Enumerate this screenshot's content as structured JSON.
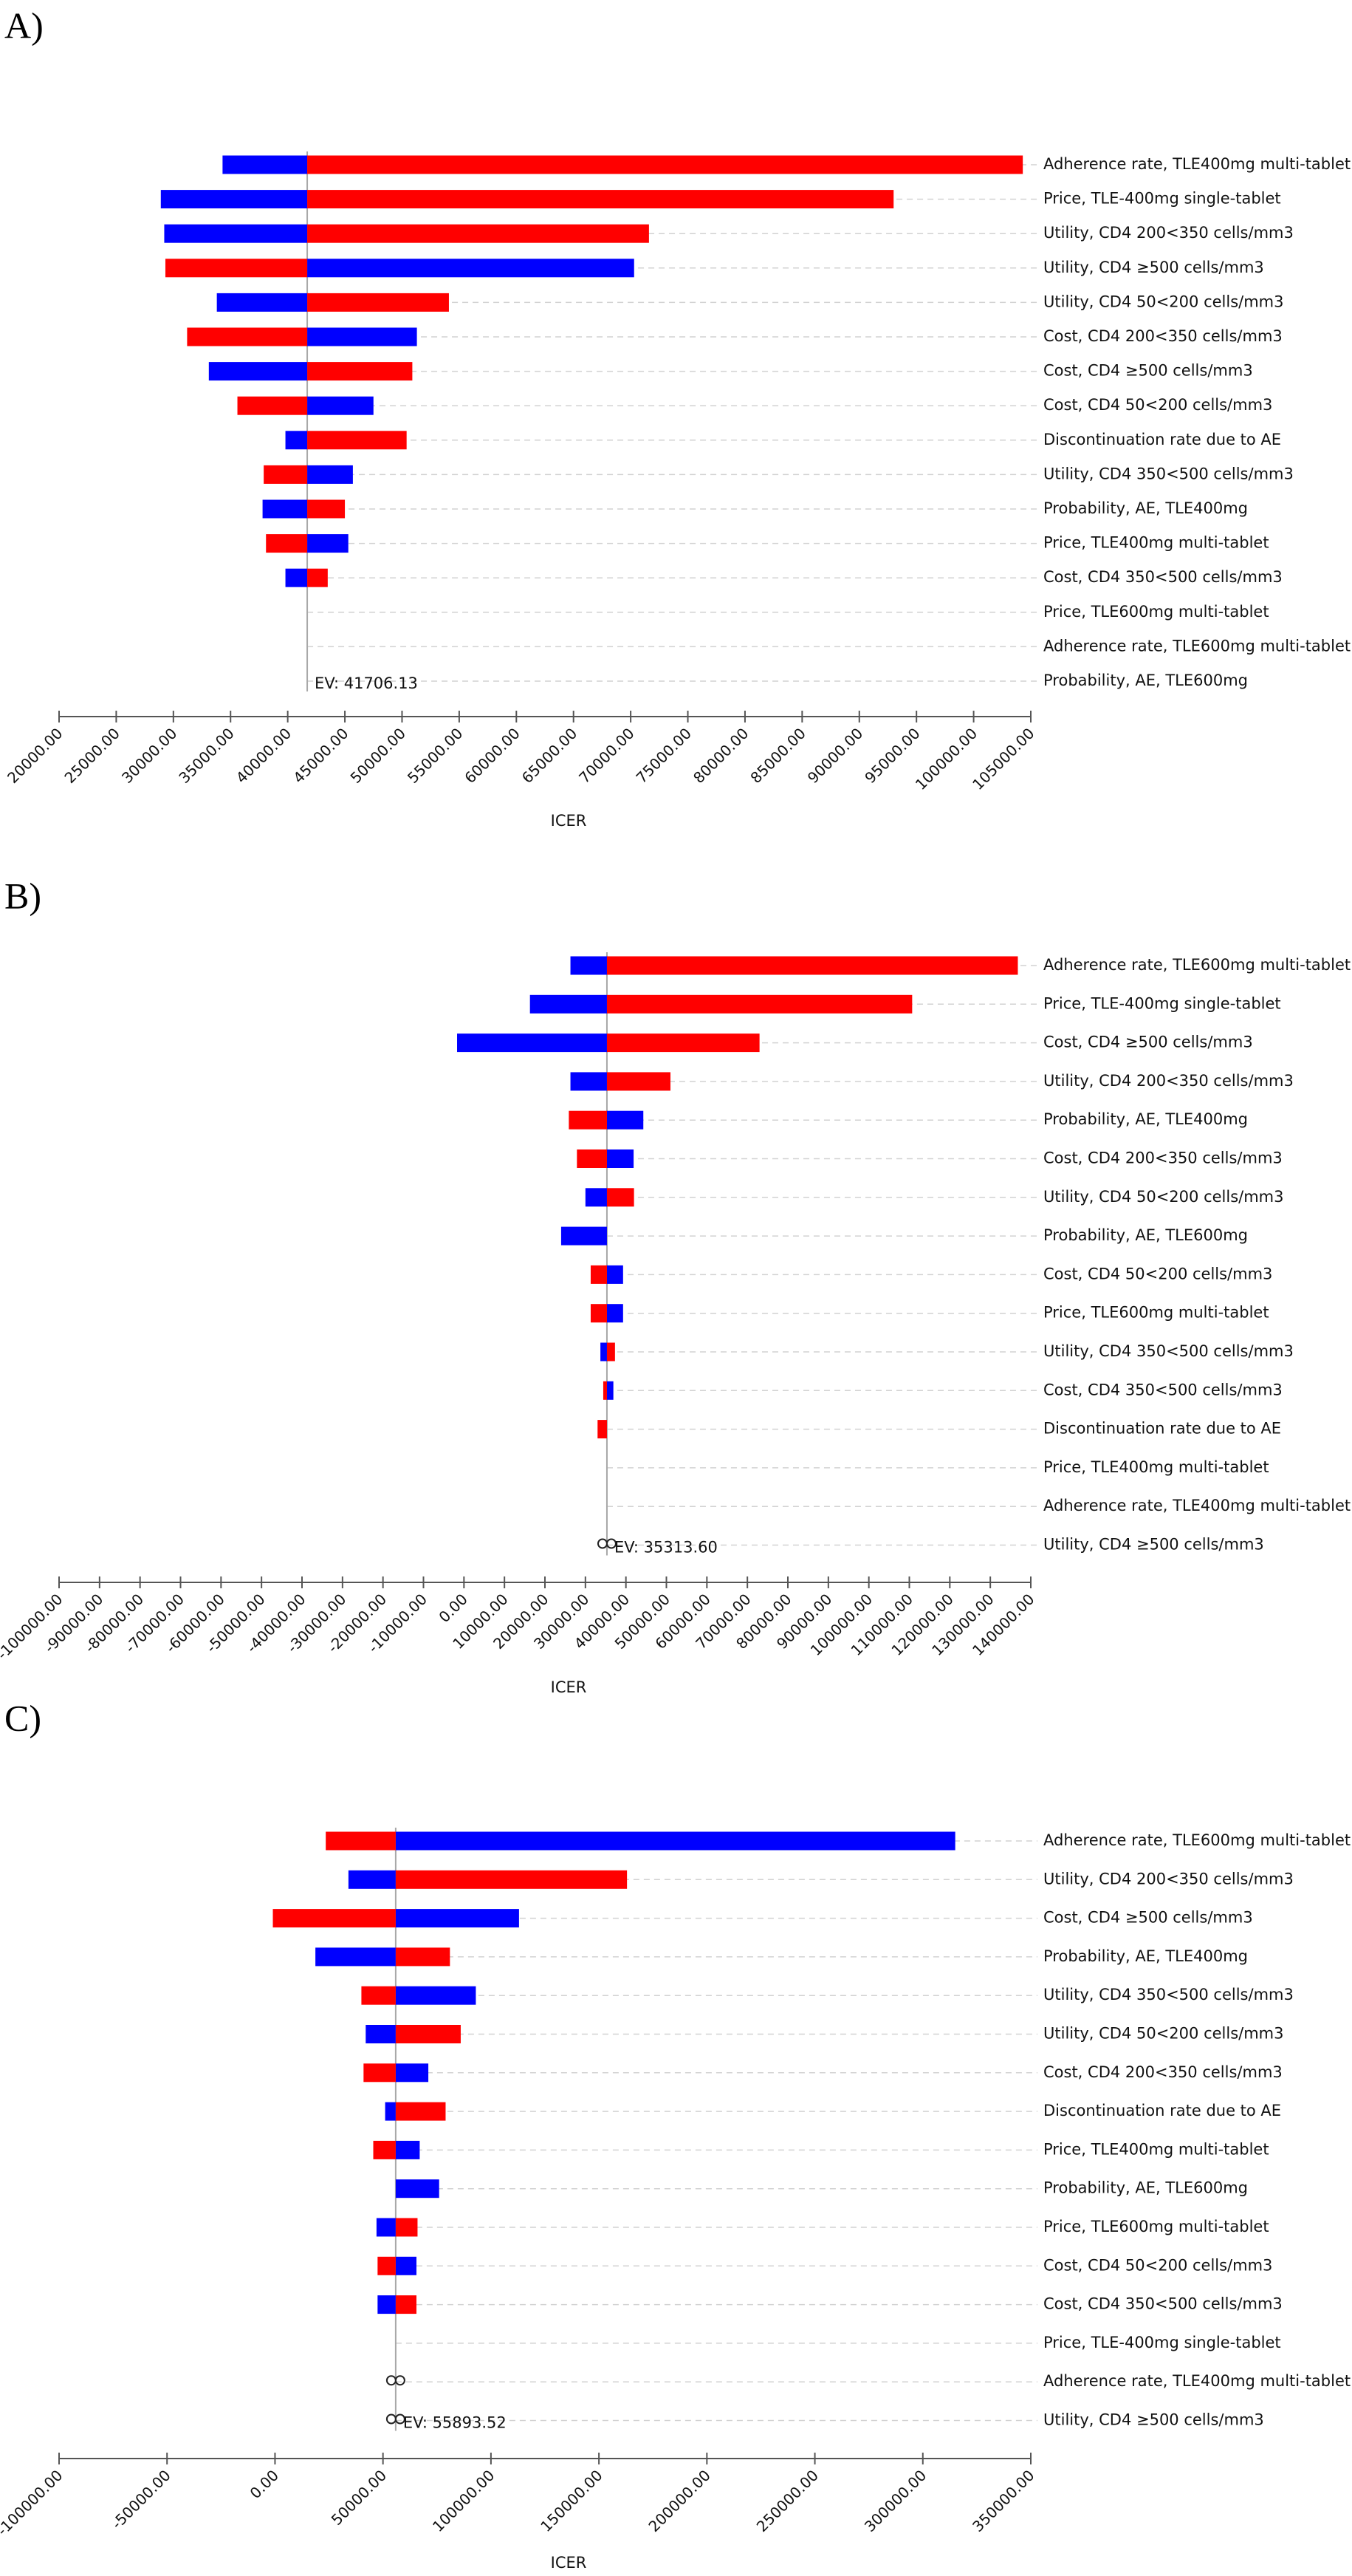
{
  "colors": {
    "low": "#ff0000",
    "high": "#0000ff"
  },
  "axis_title": "ICER",
  "chart_data": [
    {
      "panel": "A)",
      "type": "tornado",
      "ev": 41706.13,
      "ev_label": "EV: 41706.13",
      "xlabel": "ICER",
      "xlim": [
        20000,
        105000
      ],
      "ticks": [
        "20000.00",
        "25000.00",
        "30000.00",
        "35000.00",
        "40000.00",
        "45000.00",
        "50000.00",
        "55000.00",
        "60000.00",
        "65000.00",
        "70000.00",
        "75000.00",
        "80000.00",
        "85000.00",
        "90000.00",
        "95000.00",
        "100000.00",
        "105000.00"
      ],
      "tick_values": [
        20000,
        25000,
        30000,
        35000,
        40000,
        45000,
        50000,
        55000,
        60000,
        65000,
        70000,
        75000,
        80000,
        85000,
        90000,
        95000,
        100000,
        105000
      ],
      "rows": [
        {
          "label": "Adherence rate, TLE400mg multi-tablet",
          "blue": 34300,
          "red": 104300,
          "infinity": false
        },
        {
          "label": "Price, TLE-400mg single-tablet",
          "blue": 28900,
          "red": 93000,
          "infinity": false
        },
        {
          "label": "Utility, CD4 200<350 cells/mm3",
          "blue": 29200,
          "red": 71600,
          "infinity": false
        },
        {
          "label": "Utility, CD4 ≥500 cells/mm3",
          "blue": 70300,
          "red": 29300,
          "infinity": false
        },
        {
          "label": "Utility, CD4 50<200 cells/mm3",
          "blue": 33800,
          "red": 54100,
          "infinity": false
        },
        {
          "label": "Cost, CD4 200<350 cells/mm3",
          "blue": 51300,
          "red": 31200,
          "infinity": false
        },
        {
          "label": "Cost, CD4 ≥500  cells/mm3",
          "blue": 33100,
          "red": 50900,
          "infinity": false
        },
        {
          "label": "Cost, CD4 50<200 cells/mm3",
          "blue": 47500,
          "red": 35600,
          "infinity": false
        },
        {
          "label": "Discontinuation rate due to AE",
          "blue": 39800,
          "red": 50400,
          "infinity": false
        },
        {
          "label": "Utility, CD4 350<500 cells/mm3",
          "blue": 45700,
          "red": 37900,
          "infinity": false
        },
        {
          "label": "Probability, AE, TLE400mg",
          "blue": 37800,
          "red": 45000,
          "infinity": false
        },
        {
          "label": "Price, TLE400mg multi-tablet",
          "blue": 45300,
          "red": 38100,
          "infinity": false
        },
        {
          "label": "Cost, CD4 350<500  cells/mm3",
          "blue": 39800,
          "red": 43500,
          "infinity": false
        },
        {
          "label": "Price, TLE600mg  multi-tablet",
          "blue": 41706.13,
          "red": 41706.13,
          "infinity": false
        },
        {
          "label": "Adherence rate, TLE600mg  multi-tablet",
          "blue": 41706.13,
          "red": 41706.13,
          "infinity": false
        },
        {
          "label": "Probability, AE, TLE600mg",
          "blue": 41706.13,
          "red": 41706.13,
          "infinity": false
        }
      ]
    },
    {
      "panel": "B)",
      "type": "tornado",
      "ev": 35313.6,
      "ev_label": "EV: 35313.60",
      "xlabel": "ICER",
      "xlim": [
        -100000,
        140000
      ],
      "ticks": [
        "-100000.00",
        "-90000.00",
        "-80000.00",
        "-70000.00",
        "-60000.00",
        "-50000.00",
        "-40000.00",
        "-30000.00",
        "-20000.00",
        "-10000.00",
        "0.00",
        "10000.00",
        "20000.00",
        "30000.00",
        "40000.00",
        "50000.00",
        "60000.00",
        "70000.00",
        "80000.00",
        "90000.00",
        "100000.00",
        "110000.00",
        "120000.00",
        "130000.00",
        "140000.00"
      ],
      "tick_values": [
        -100000,
        -90000,
        -80000,
        -70000,
        -60000,
        -50000,
        -40000,
        -30000,
        -20000,
        -10000,
        0,
        10000,
        20000,
        30000,
        40000,
        50000,
        60000,
        70000,
        80000,
        90000,
        100000,
        110000,
        120000,
        130000,
        140000
      ],
      "rows": [
        {
          "label": "Adherence rate, TLE600mg  multi-tablet",
          "blue": 26300,
          "red": 136800,
          "infinity": false
        },
        {
          "label": "Price, TLE-400mg single-tablet",
          "blue": 16300,
          "red": 110700,
          "infinity": false
        },
        {
          "label": "Cost, CD4 ≥500  cells/mm3",
          "blue": -1700,
          "red": 73000,
          "infinity": false
        },
        {
          "label": "Utility, CD4 200<350 cells/mm3",
          "blue": 26300,
          "red": 51000,
          "infinity": false
        },
        {
          "label": "Probability, AE, TLE400mg",
          "blue": 44300,
          "red": 25900,
          "infinity": false
        },
        {
          "label": "Cost, CD4 200<350 cells/mm3",
          "blue": 41900,
          "red": 27900,
          "infinity": false
        },
        {
          "label": "Utility, CD4 50<200 cells/mm3",
          "blue": 30000,
          "red": 42000,
          "infinity": false
        },
        {
          "label": "Probability, AE, TLE600mg",
          "blue": 24000,
          "red": 35313.6,
          "infinity": false
        },
        {
          "label": "Cost, CD4 50<200 cells/mm3",
          "blue": 39300,
          "red": 31300,
          "infinity": false
        },
        {
          "label": "Price, TLE600mg  multi-tablet",
          "blue": 39300,
          "red": 31300,
          "infinity": false
        },
        {
          "label": "Utility, CD4 350<500 cells/mm3",
          "blue": 33700,
          "red": 37300,
          "infinity": false
        },
        {
          "label": "Cost, CD4 350<500  cells/mm3",
          "blue": 36900,
          "red": 34400,
          "infinity": false
        },
        {
          "label": "Discontinuation rate due to AE",
          "blue": 35313.6,
          "red": 33000,
          "infinity": false
        },
        {
          "label": "Price, TLE400mg multi-tablet",
          "blue": 35313.6,
          "red": 35313.6,
          "infinity": false
        },
        {
          "label": "Adherence rate, TLE400mg multi-tablet",
          "blue": 35313.6,
          "red": 35313.6,
          "infinity": false
        },
        {
          "label": "Utility, CD4 ≥500 cells/mm3",
          "blue": 35313.6,
          "red": 35313.6,
          "infinity": true
        }
      ]
    },
    {
      "panel": "C)",
      "type": "tornado",
      "ev": 55893.52,
      "ev_label": "EV: 55893.52",
      "xlabel": "ICER",
      "xlim": [
        -100000,
        350000
      ],
      "ticks": [
        "-100000.00",
        "-50000.00",
        "0.00",
        "50000.00",
        "100000.00",
        "150000.00",
        "200000.00",
        "250000.00",
        "300000.00",
        "350000.00"
      ],
      "tick_values": [
        -100000,
        -50000,
        0,
        50000,
        100000,
        150000,
        200000,
        250000,
        300000,
        350000
      ],
      "rows": [
        {
          "label": "Adherence rate, TLE600mg  multi-tablet",
          "blue": 315000,
          "red": 23500,
          "infinity": false
        },
        {
          "label": "Utility, CD4 200<350 cells/mm3",
          "blue": 34000,
          "red": 163000,
          "infinity": false
        },
        {
          "label": "Cost, CD4 ≥500  cells/mm3",
          "blue": 113000,
          "red": -1000,
          "infinity": false
        },
        {
          "label": "Probability, AE, TLE400mg",
          "blue": 18700,
          "red": 81000,
          "infinity": false
        },
        {
          "label": "Utility, CD4 350<500 cells/mm3",
          "blue": 93000,
          "red": 40000,
          "infinity": false
        },
        {
          "label": "Utility, CD4 50<200 cells/mm3",
          "blue": 42000,
          "red": 86000,
          "infinity": false
        },
        {
          "label": "Cost, CD4 200<350 cells/mm3",
          "blue": 71000,
          "red": 41000,
          "infinity": false
        },
        {
          "label": "Discontinuation rate due to AE",
          "blue": 51000,
          "red": 79000,
          "infinity": false
        },
        {
          "label": "Price, TLE400mg multi-tablet",
          "blue": 67000,
          "red": 45500,
          "infinity": false
        },
        {
          "label": "Probability, AE, TLE600mg",
          "blue": 76000,
          "red": 55893.52,
          "infinity": false
        },
        {
          "label": "Price, TLE600mg  multi-tablet",
          "blue": 47000,
          "red": 66000,
          "infinity": false
        },
        {
          "label": "Cost, CD4 50<200 cells/mm3",
          "blue": 65500,
          "red": 47500,
          "infinity": false
        },
        {
          "label": "Cost, CD4 350<500  cells/mm3",
          "blue": 47500,
          "red": 65500,
          "infinity": false
        },
        {
          "label": "Price, TLE-400mg single-tablet",
          "blue": 55893.52,
          "red": 55893.52,
          "infinity": false
        },
        {
          "label": "Adherence rate, TLE400mg multi-tablet",
          "blue": 55893.52,
          "red": 55893.52,
          "infinity": true
        },
        {
          "label": "Utility, CD4 ≥500 cells/mm3",
          "blue": 55893.52,
          "red": 55893.52,
          "infinity": true
        }
      ]
    }
  ]
}
